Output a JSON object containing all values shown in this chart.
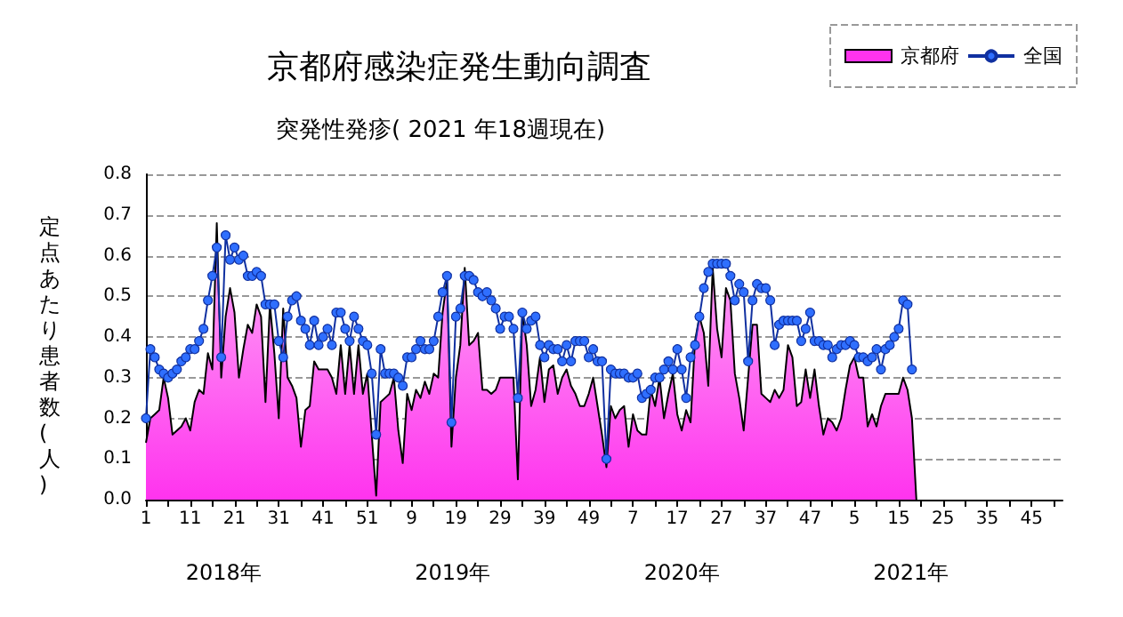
{
  "chart_data": {
    "type": "area",
    "title": "京都府感染症発生動向調査",
    "subtitle": "突発性発疹( 2021 年18週現在)",
    "ylabel": "定点あたり患者数(人)",
    "annotations": [
      "2018年",
      "2019年",
      "2020年",
      "2021年"
    ],
    "categories": [
      "1",
      null,
      null,
      null,
      null,
      null,
      null,
      null,
      null,
      null,
      "11",
      null,
      null,
      null,
      null,
      null,
      null,
      null,
      null,
      null,
      "21",
      null,
      null,
      null,
      null,
      null,
      null,
      null,
      null,
      null,
      "31",
      null,
      null,
      null,
      null,
      null,
      null,
      null,
      null,
      null,
      "41",
      null,
      null,
      null,
      null,
      null,
      null,
      null,
      null,
      null,
      "51",
      null,
      null,
      null,
      null,
      null,
      null,
      null,
      null,
      null,
      "9",
      null,
      null,
      null,
      null,
      null,
      null,
      null,
      null,
      null,
      "19",
      null,
      null,
      null,
      null,
      null,
      null,
      null,
      null,
      null,
      "29",
      null,
      null,
      null,
      null,
      null,
      null,
      null,
      null,
      null,
      "39",
      null,
      null,
      null,
      null,
      null,
      null,
      null,
      null,
      null,
      "49",
      null,
      null,
      null,
      null,
      null,
      null,
      null,
      null,
      null,
      "7",
      null,
      null,
      null,
      null,
      null,
      null,
      null,
      null,
      null,
      "17",
      null,
      null,
      null,
      null,
      null,
      null,
      null,
      null,
      null,
      "27",
      null,
      null,
      null,
      null,
      null,
      null,
      null,
      null,
      null,
      "37",
      null,
      null,
      null,
      null,
      null,
      null,
      null,
      null,
      null,
      "47",
      null,
      null,
      null,
      null,
      null,
      null,
      null,
      null,
      null,
      "5",
      null,
      null,
      null,
      null,
      null,
      null,
      null,
      null,
      null,
      "15",
      null,
      null,
      null,
      null,
      null,
      null,
      null,
      null,
      null,
      "25",
      null,
      null,
      null,
      null,
      null,
      null,
      null,
      null,
      null,
      "35",
      null,
      null,
      null,
      null,
      null,
      null,
      null,
      null,
      null,
      "45",
      null,
      null,
      null,
      null,
      null,
      null,
      null
    ],
    "series": [
      {
        "name": "京都府",
        "color": "#ff33ee",
        "values": [
          0.14,
          0.2,
          0.21,
          0.22,
          0.3,
          0.25,
          0.16,
          0.17,
          0.18,
          0.2,
          0.17,
          0.24,
          0.27,
          0.26,
          0.36,
          0.32,
          0.68,
          0.3,
          0.45,
          0.52,
          0.46,
          0.3,
          0.37,
          0.43,
          0.41,
          0.48,
          0.45,
          0.24,
          0.48,
          0.36,
          0.2,
          0.47,
          0.3,
          0.28,
          0.25,
          0.13,
          0.22,
          0.23,
          0.34,
          0.32,
          0.32,
          0.32,
          0.3,
          0.26,
          0.38,
          0.26,
          0.38,
          0.26,
          0.38,
          0.26,
          0.31,
          0.16,
          0.01,
          0.24,
          0.25,
          0.26,
          0.3,
          0.17,
          0.09,
          0.26,
          0.22,
          0.27,
          0.25,
          0.29,
          0.26,
          0.31,
          0.3,
          0.46,
          0.54,
          0.13,
          0.3,
          0.38,
          0.57,
          0.38,
          0.39,
          0.41,
          0.27,
          0.27,
          0.26,
          0.27,
          0.3,
          0.3,
          0.3,
          0.3,
          0.05,
          0.46,
          0.38,
          0.23,
          0.27,
          0.35,
          0.24,
          0.32,
          0.33,
          0.26,
          0.3,
          0.32,
          0.28,
          0.26,
          0.23,
          0.23,
          0.26,
          0.3,
          0.23,
          0.16,
          0.08,
          0.23,
          0.2,
          0.22,
          0.23,
          0.13,
          0.21,
          0.17,
          0.16,
          0.16,
          0.27,
          0.23,
          0.3,
          0.2,
          0.26,
          0.31,
          0.21,
          0.17,
          0.22,
          0.19,
          0.39,
          0.45,
          0.41,
          0.28,
          0.57,
          0.42,
          0.35,
          0.52,
          0.49,
          0.31,
          0.25,
          0.17,
          0.3,
          0.43,
          0.43,
          0.26,
          0.25,
          0.24,
          0.27,
          0.25,
          0.27,
          0.38,
          0.35,
          0.23,
          0.24,
          0.32,
          0.25,
          0.32,
          0.23,
          0.16,
          0.2,
          0.19,
          0.17,
          0.2,
          0.27,
          0.33,
          0.35,
          0.3,
          0.3,
          0.18,
          0.21,
          0.18,
          0.23,
          0.26,
          0.26,
          0.26,
          0.26,
          0.3,
          0.27,
          0.2,
          0,
          null,
          null,
          null,
          null,
          null,
          null,
          null,
          null,
          null,
          null,
          null,
          null,
          null,
          null,
          null,
          null,
          null,
          null,
          null,
          null,
          null,
          null,
          null,
          null,
          null,
          null,
          null,
          null,
          null,
          null,
          null,
          null,
          null
        ]
      },
      {
        "name": "全国",
        "type": "line",
        "marker": "circle",
        "color": "#2f6fff",
        "values": [
          0.2,
          0.37,
          0.35,
          0.32,
          0.31,
          0.3,
          0.31,
          0.32,
          0.34,
          0.35,
          0.37,
          0.37,
          0.39,
          0.42,
          0.49,
          0.55,
          0.62,
          0.35,
          0.65,
          0.59,
          0.62,
          0.59,
          0.6,
          0.55,
          0.55,
          0.56,
          0.55,
          0.48,
          0.48,
          0.48,
          0.39,
          0.35,
          0.45,
          0.49,
          0.5,
          0.44,
          0.42,
          0.38,
          0.44,
          0.38,
          0.4,
          0.42,
          0.38,
          0.46,
          0.46,
          0.42,
          0.39,
          0.45,
          0.42,
          0.39,
          0.38,
          0.31,
          0.16,
          0.37,
          0.31,
          0.31,
          0.31,
          0.3,
          0.28,
          0.35,
          0.35,
          0.37,
          0.39,
          0.37,
          0.37,
          0.39,
          0.45,
          0.51,
          0.55,
          0.19,
          0.45,
          0.47,
          0.55,
          0.55,
          0.54,
          0.51,
          0.5,
          0.51,
          0.49,
          0.47,
          0.42,
          0.45,
          0.45,
          0.42,
          0.25,
          0.46,
          0.42,
          0.44,
          0.45,
          0.38,
          0.35,
          0.38,
          0.37,
          0.37,
          0.34,
          0.38,
          0.34,
          0.39,
          0.39,
          0.39,
          0.35,
          0.37,
          0.34,
          0.34,
          0.1,
          0.32,
          0.31,
          0.31,
          0.31,
          0.3,
          0.3,
          0.31,
          0.25,
          0.26,
          0.27,
          0.3,
          0.3,
          0.32,
          0.34,
          0.32,
          0.37,
          0.32,
          0.25,
          0.35,
          0.38,
          0.45,
          0.52,
          0.56,
          0.58,
          0.58,
          0.58,
          0.58,
          0.55,
          0.49,
          0.53,
          0.51,
          0.34,
          0.49,
          0.53,
          0.52,
          0.52,
          0.49,
          0.38,
          0.43,
          0.44,
          0.44,
          0.44,
          0.44,
          0.39,
          0.42,
          0.46,
          0.39,
          0.39,
          0.38,
          0.38,
          0.35,
          0.37,
          0.38,
          0.38,
          0.39,
          0.38,
          0.35,
          0.35,
          0.34,
          0.35,
          0.37,
          0.32,
          0.37,
          0.38,
          0.4,
          0.42,
          0.49,
          0.48,
          0.32,
          null,
          null,
          null,
          null,
          null,
          null,
          null,
          null,
          null,
          null,
          null,
          null,
          null,
          null,
          null,
          null,
          null,
          null,
          null,
          null,
          null,
          null,
          null,
          null,
          null,
          null,
          null,
          null,
          null,
          null,
          null,
          null,
          null,
          null
        ]
      }
    ],
    "ylim": [
      0,
      0.8
    ],
    "yticks": [
      {
        "value": 0,
        "label": "0.0"
      },
      0.1,
      0.2,
      0.3,
      0.4,
      0.5,
      0.6,
      0.7,
      0.8
    ],
    "grid": "y",
    "legend": "top right"
  }
}
